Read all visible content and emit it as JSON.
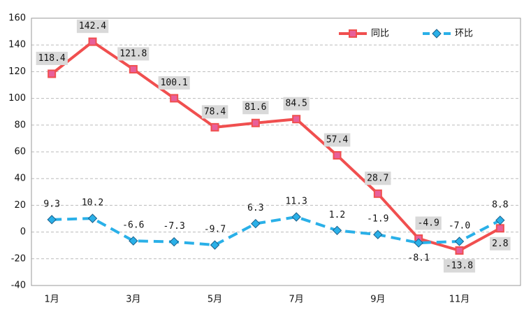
{
  "chart_data": {
    "type": "line",
    "categories": [
      "1月",
      null,
      "3月",
      null,
      "5月",
      null,
      "7月",
      null,
      "9月",
      null,
      "11月",
      null
    ],
    "series": [
      {
        "name": "同比",
        "color": "#f04f4f",
        "marker": "square",
        "values": [
          118.4,
          142.4,
          121.8,
          100.1,
          78.4,
          81.6,
          84.5,
          57.4,
          28.7,
          -4.9,
          -13.8,
          2.8
        ],
        "value_labels": [
          "118.4",
          "142.4",
          "121.8",
          "100.1",
          "78.4",
          "81.6",
          "84.5",
          "57.4",
          "28.7",
          "-4.9",
          "-13.8",
          "2.8"
        ]
      },
      {
        "name": "环比",
        "color": "#2ab0e8",
        "marker": "diamond",
        "dashed": true,
        "values": [
          9.3,
          10.2,
          -6.6,
          -7.3,
          -9.7,
          6.3,
          11.3,
          1.2,
          -1.9,
          -8.1,
          -7.0,
          8.8
        ],
        "value_labels": [
          "9.3",
          "10.2",
          "-6.6",
          "-7.3",
          "-9.7",
          "6.3",
          "11.3",
          "1.2",
          "-1.9",
          "-8.1",
          "-7.0",
          "8.8"
        ]
      }
    ],
    "ylim": [
      -40,
      160
    ],
    "yticks": [
      -40,
      -20,
      0,
      20,
      40,
      60,
      80,
      100,
      120,
      140,
      160
    ],
    "grid": true,
    "legend": "top-right"
  }
}
